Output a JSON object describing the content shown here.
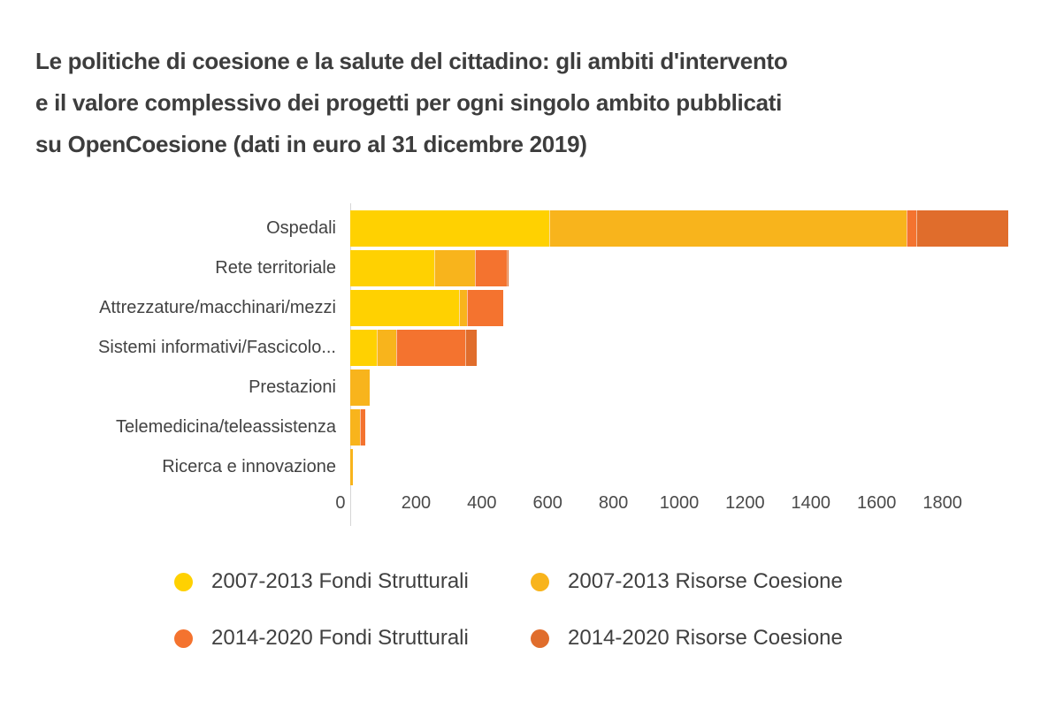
{
  "page": {
    "title": "Le politiche di coesione e la salute del cittadino: gli ambiti d'intervento e il valore complessivo dei progetti per ogni singolo ambito pubblicati su OpenCoesione (dati in euro al 31 dicembre 2019)",
    "title_lines": [
      "Le politiche di coesione e la salute del cittadino: gli ambiti d'intervento",
      "e il valore complessivo dei progetti per ogni singolo ambito pubblicati",
      "su OpenCoesione (dati in euro al 31 dicembre 2019)"
    ]
  },
  "chart_data": {
    "type": "bar",
    "orientation": "horizontal",
    "stacked": true,
    "title": "Le politiche di coesione e la salute del cittadino: gli ambiti d'intervento e il valore complessivo dei progetti per ogni singolo ambito pubblicati su OpenCoesione (dati in euro al 31 dicembre 2019)",
    "categories": [
      "Ospedali",
      "Rete territoriale",
      "Attrezzature/macchinari/mezzi",
      "Sistemi informativi/Fascicolo...",
      "Prestazioni",
      "Telemedicina/teleassistenza",
      "Ricerca e innovazione"
    ],
    "series": [
      {
        "name": "2007-2013 Fondi Strutturali",
        "color": "#FFD101",
        "values": [
          605,
          255,
          330,
          80,
          0,
          0,
          0
        ]
      },
      {
        "name": "2007-2013 Risorse Coesione",
        "color": "#F8B41C",
        "values": [
          1085,
          125,
          25,
          60,
          60,
          30,
          8
        ]
      },
      {
        "name": "2014-2020 Fondi Strutturali",
        "color": "#F4732F",
        "values": [
          30,
          95,
          110,
          210,
          0,
          15,
          0
        ]
      },
      {
        "name": "2014-2020 Risorse Coesione",
        "color": "#E06D2C",
        "values": [
          280,
          5,
          0,
          35,
          0,
          0,
          0
        ]
      }
    ],
    "totals": [
      2000,
      480,
      465,
      385,
      60,
      45,
      8
    ],
    "xlim": [
      0,
      2000
    ],
    "xticks": [
      0,
      200,
      400,
      600,
      800,
      1000,
      1200,
      1400,
      1600,
      1800
    ],
    "xlabel": "",
    "ylabel": "",
    "grid": false,
    "legend_position": "bottom",
    "colors": {
      "axis_line": "#d6d6d6",
      "tick_text": "#4a4a4a",
      "label_text": "#424242",
      "title_text": "#3d3d3d"
    }
  }
}
